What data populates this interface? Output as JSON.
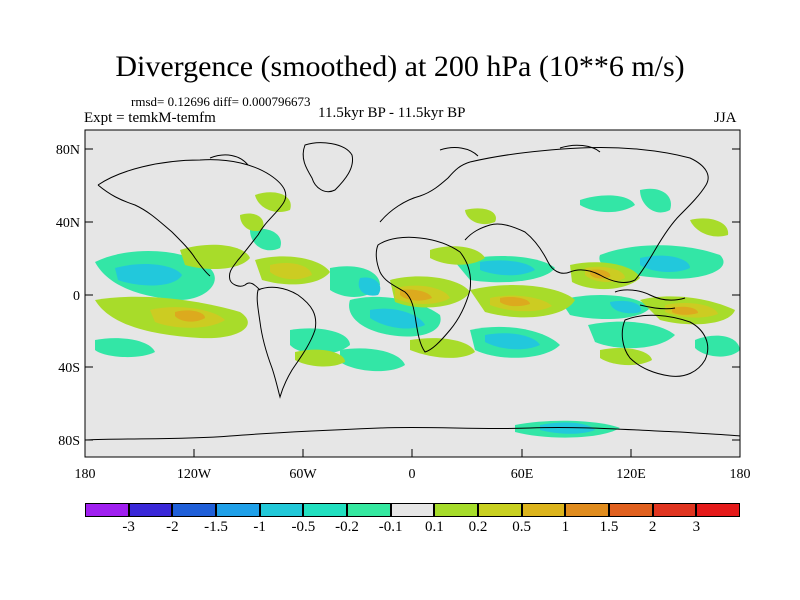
{
  "title": "Divergence (smoothed) at 200 hPa (10**6 m/s)",
  "stats": "rmsd= 0.12696 diff= 0.000796673",
  "expt": "Expt = temkM-temfm",
  "period": "11.5kyr BP - 11.5kyr BP",
  "season": "JJA",
  "lat_labels": [
    "80N",
    "40N",
    "0",
    "40S",
    "80S"
  ],
  "lon_labels": [
    "180",
    "120W",
    "60W",
    "0",
    "60E",
    "120E",
    "180"
  ],
  "colorbar": {
    "labels": [
      "-3",
      "-2",
      "-1.5",
      "-1",
      "-0.5",
      "-0.2",
      "-0.1",
      "0.1",
      "0.2",
      "0.5",
      "1",
      "1.5",
      "2",
      "3"
    ],
    "colors": [
      "#a020f0",
      "#3a28d8",
      "#1f5fd8",
      "#1fa0e8",
      "#22c8d8",
      "#22e0c0",
      "#35e8a0",
      "#e6e6e6",
      "#a6dc2a",
      "#c8d020",
      "#dcb41c",
      "#e08c1e",
      "#e0601e",
      "#e03520",
      "#e51a1a"
    ]
  },
  "colors": {
    "background": "#e6e6e6",
    "neg_weak": "#33e6a6",
    "neg_mid": "#22c8dc",
    "pos_weak": "#a8dc2a",
    "pos_mid": "#cccc22",
    "pos_strong": "#dcaa1e",
    "coast": "#000000"
  }
}
